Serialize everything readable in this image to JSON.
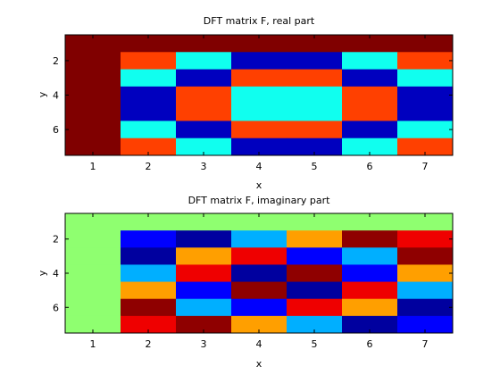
{
  "chart_data": [
    {
      "type": "heatmap",
      "title": "DFT matrix F, real part",
      "xlabel": "x",
      "ylabel": "y",
      "x_tick_labels": [
        "1",
        "2",
        "3",
        "4",
        "5",
        "6",
        "7"
      ],
      "y_tick_labels": [
        "2",
        "4",
        "6"
      ],
      "xlim": [
        0.5,
        7.5
      ],
      "ylim": [
        0.5,
        7.5
      ],
      "y_direction": "reverse",
      "grid": false,
      "colormap": "jet",
      "clim": [
        -1,
        1
      ],
      "values": [
        [
          1,
          1,
          1,
          1,
          1,
          1,
          1
        ],
        [
          1,
          0.623,
          -0.223,
          -0.901,
          -0.901,
          -0.223,
          0.623
        ],
        [
          1,
          -0.223,
          -0.901,
          0.623,
          0.623,
          -0.901,
          -0.223
        ],
        [
          1,
          -0.901,
          0.623,
          -0.223,
          -0.223,
          0.623,
          -0.901
        ],
        [
          1,
          -0.901,
          0.623,
          -0.223,
          -0.223,
          0.623,
          -0.901
        ],
        [
          1,
          -0.223,
          -0.901,
          0.623,
          0.623,
          -0.901,
          -0.223
        ],
        [
          1,
          0.623,
          -0.223,
          -0.901,
          -0.901,
          -0.223,
          0.623
        ]
      ]
    },
    {
      "type": "heatmap",
      "title": "DFT matrix F, imaginary part",
      "xlabel": "x",
      "ylabel": "y",
      "x_tick_labels": [
        "1",
        "2",
        "3",
        "4",
        "5",
        "6",
        "7"
      ],
      "y_tick_labels": [
        "2",
        "4",
        "6"
      ],
      "xlim": [
        0.5,
        7.5
      ],
      "ylim": [
        0.5,
        7.5
      ],
      "y_direction": "reverse",
      "grid": false,
      "colormap": "jet",
      "clim": [
        -1,
        1
      ],
      "values": [
        [
          0,
          0,
          0,
          0,
          0,
          0,
          0
        ],
        [
          0,
          -0.782,
          -0.975,
          -0.434,
          0.434,
          0.975,
          0.782
        ],
        [
          0,
          -0.975,
          0.434,
          0.782,
          -0.782,
          -0.434,
          0.975
        ],
        [
          0,
          -0.434,
          0.782,
          -0.975,
          0.975,
          -0.782,
          0.434
        ],
        [
          0,
          0.434,
          -0.782,
          0.975,
          -0.975,
          0.782,
          -0.434
        ],
        [
          0,
          0.975,
          -0.434,
          -0.782,
          0.782,
          0.434,
          -0.975
        ],
        [
          0,
          0.782,
          0.975,
          0.434,
          -0.434,
          -0.975,
          -0.782
        ]
      ]
    }
  ]
}
